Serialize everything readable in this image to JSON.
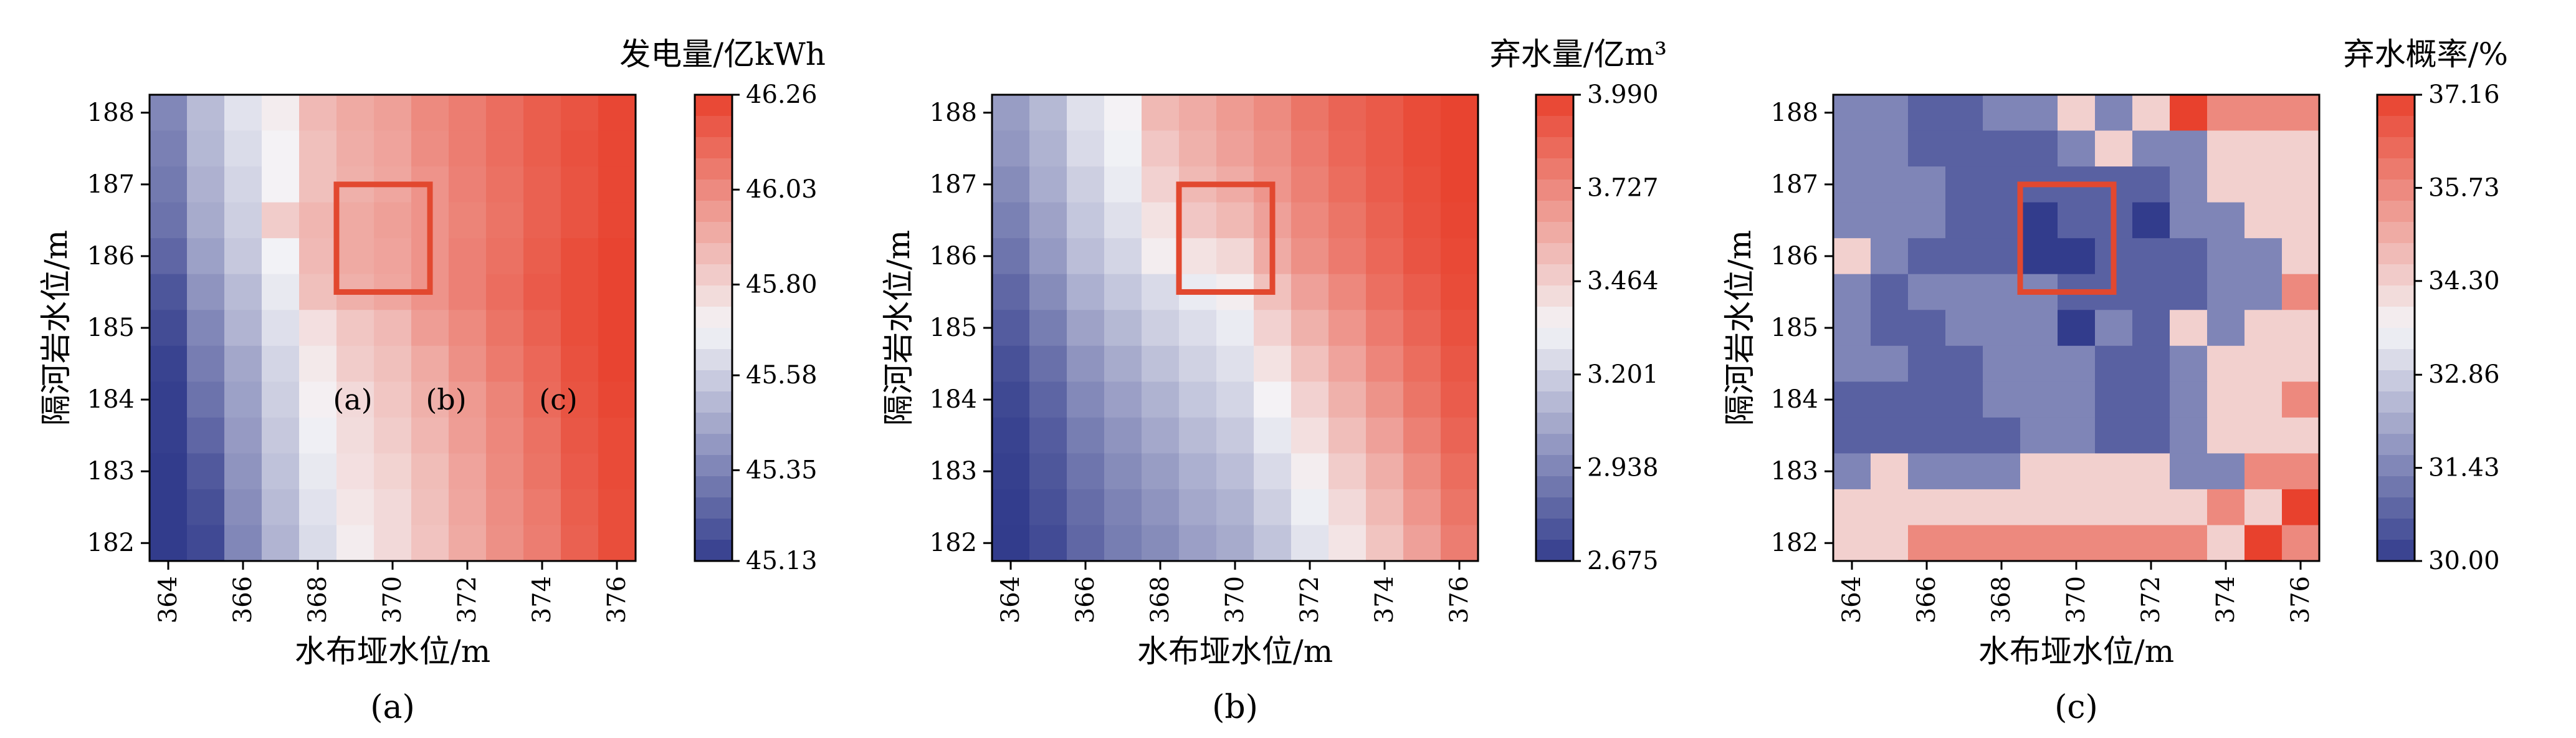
{
  "panels": [
    {
      "caption": "(a)",
      "colorbar_title": "发电量/亿kWh",
      "colorbar_ticks": [
        "46.26",
        "46.03",
        "45.80",
        "45.58",
        "45.35",
        "45.13"
      ],
      "vmin": 45.13,
      "vmax": 46.26
    },
    {
      "caption": "(b)",
      "colorbar_title": "弃水量/亿m³",
      "colorbar_ticks": [
        "3.990",
        "3.727",
        "3.464",
        "3.201",
        "2.938",
        "2.675"
      ],
      "vmin": 2.675,
      "vmax": 3.99
    },
    {
      "caption": "(c)",
      "colorbar_title": "弃水概率/%",
      "colorbar_ticks": [
        "37.16",
        "35.73",
        "34.30",
        "32.86",
        "31.43",
        "30.00"
      ],
      "vmin": 30.0,
      "vmax": 37.16
    }
  ],
  "annotations": [
    "(a)",
    "(b)",
    "(c)"
  ],
  "axes": {
    "xlabel": "水布垭水位/m",
    "ylabel": "隔河岩水位/m",
    "x_ticks": [
      "364",
      "366",
      "368",
      "370",
      "372",
      "374",
      "376"
    ],
    "y_ticks": [
      "188",
      "187",
      "186",
      "185",
      "184",
      "183",
      "182"
    ]
  },
  "colors": {
    "low": "#323c8c",
    "mid": "#f4f4f7",
    "high": "#e8412d",
    "highlight": "#e2482f"
  },
  "chart_data": [
    {
      "type": "heatmap",
      "title": "发电量/亿kWh",
      "xlabel": "水布垭水位/m",
      "ylabel": "隔河岩水位/m",
      "x": [
        364,
        365,
        366,
        367,
        368,
        369,
        370,
        371,
        372,
        373,
        374,
        375,
        376
      ],
      "y": [
        188,
        187.5,
        187,
        186.5,
        186,
        185.5,
        185,
        184.5,
        184,
        183.5,
        183,
        182.5,
        182
      ],
      "vrange": [
        45.13,
        46.26
      ],
      "highlight_box": {
        "x": [
          368.5,
          371
        ],
        "y": [
          185.5,
          187
        ]
      },
      "values": [
        [
          45.36,
          45.52,
          45.64,
          45.72,
          45.88,
          45.93,
          45.96,
          46.03,
          46.07,
          46.12,
          46.17,
          46.2,
          46.24
        ],
        [
          45.34,
          45.51,
          45.62,
          45.7,
          45.86,
          45.92,
          45.95,
          46.02,
          46.07,
          46.12,
          46.17,
          46.21,
          46.24
        ],
        [
          45.32,
          45.49,
          45.6,
          45.7,
          45.86,
          45.91,
          45.94,
          46.0,
          46.06,
          46.11,
          46.16,
          46.2,
          46.24
        ],
        [
          45.3,
          45.47,
          45.58,
          45.82,
          45.89,
          45.93,
          45.96,
          46.0,
          46.05,
          46.1,
          46.16,
          46.2,
          46.24
        ],
        [
          45.26,
          45.44,
          45.56,
          45.69,
          45.88,
          45.93,
          45.95,
          46.0,
          46.06,
          46.11,
          46.17,
          46.22,
          46.25
        ],
        [
          45.21,
          45.4,
          45.52,
          45.66,
          45.86,
          45.91,
          45.94,
          46.0,
          46.06,
          46.12,
          46.18,
          46.22,
          46.25
        ],
        [
          45.18,
          45.36,
          45.5,
          45.63,
          45.76,
          45.84,
          45.88,
          45.97,
          46.03,
          46.1,
          46.16,
          46.22,
          46.25
        ],
        [
          45.15,
          45.33,
          45.46,
          45.6,
          45.73,
          45.82,
          45.86,
          45.93,
          46.01,
          46.08,
          46.14,
          46.21,
          46.25
        ],
        [
          45.14,
          45.3,
          45.44,
          45.58,
          45.71,
          45.78,
          45.84,
          45.91,
          45.98,
          46.05,
          46.13,
          46.2,
          46.24
        ],
        [
          45.14,
          45.26,
          45.42,
          45.56,
          45.68,
          45.77,
          45.82,
          45.89,
          45.97,
          46.04,
          46.11,
          46.19,
          46.23
        ],
        [
          45.13,
          45.22,
          45.4,
          45.54,
          45.66,
          45.76,
          45.8,
          45.87,
          45.95,
          46.03,
          46.1,
          46.18,
          46.23
        ],
        [
          45.13,
          45.19,
          45.38,
          45.52,
          45.64,
          45.74,
          45.78,
          45.86,
          45.94,
          46.02,
          46.08,
          46.17,
          46.22
        ],
        [
          45.13,
          45.17,
          45.36,
          45.5,
          45.62,
          45.72,
          45.78,
          45.85,
          45.93,
          46.01,
          46.07,
          46.16,
          46.22
        ]
      ]
    },
    {
      "type": "heatmap",
      "title": "弃水量/亿m³",
      "xlabel": "水布垭水位/m",
      "ylabel": "隔河岩水位/m",
      "x": [
        364,
        365,
        366,
        367,
        368,
        369,
        370,
        371,
        372,
        373,
        374,
        375,
        376
      ],
      "y": [
        188,
        187.5,
        187,
        186.5,
        186,
        185.5,
        185,
        184.5,
        184,
        183.5,
        183,
        182.5,
        182
      ],
      "vrange": [
        2.675,
        3.99
      ],
      "highlight_box": {
        "x": [
          368.5,
          371
        ],
        "y": [
          185.5,
          187
        ]
      },
      "values": [
        [
          3.02,
          3.12,
          3.26,
          3.34,
          3.55,
          3.6,
          3.66,
          3.72,
          3.8,
          3.86,
          3.9,
          3.95,
          3.98
        ],
        [
          3.0,
          3.1,
          3.24,
          3.32,
          3.5,
          3.58,
          3.64,
          3.7,
          3.78,
          3.85,
          3.9,
          3.95,
          3.98
        ],
        [
          2.96,
          3.08,
          3.2,
          3.3,
          3.46,
          3.55,
          3.6,
          3.68,
          3.76,
          3.83,
          3.89,
          3.94,
          3.98
        ],
        [
          2.92,
          3.04,
          3.17,
          3.26,
          3.4,
          3.5,
          3.55,
          3.64,
          3.73,
          3.8,
          3.87,
          3.93,
          3.97
        ],
        [
          2.88,
          3.01,
          3.14,
          3.22,
          3.36,
          3.4,
          3.44,
          3.6,
          3.7,
          3.78,
          3.85,
          3.92,
          3.96
        ],
        [
          2.83,
          2.96,
          3.09,
          3.17,
          3.24,
          3.3,
          3.36,
          3.52,
          3.64,
          3.73,
          3.82,
          3.89,
          3.95
        ],
        [
          2.79,
          2.91,
          3.04,
          3.12,
          3.2,
          3.25,
          3.3,
          3.46,
          3.58,
          3.68,
          3.78,
          3.86,
          3.93
        ],
        [
          2.75,
          2.86,
          2.99,
          3.07,
          3.15,
          3.21,
          3.26,
          3.4,
          3.52,
          3.63,
          3.74,
          3.83,
          3.91
        ],
        [
          2.72,
          2.82,
          2.95,
          3.03,
          3.1,
          3.17,
          3.22,
          3.34,
          3.46,
          3.58,
          3.69,
          3.8,
          3.89
        ],
        [
          2.7,
          2.79,
          2.91,
          2.99,
          3.06,
          3.13,
          3.18,
          3.29,
          3.41,
          3.53,
          3.64,
          3.76,
          3.86
        ],
        [
          2.69,
          2.77,
          2.88,
          2.96,
          3.02,
          3.09,
          3.14,
          3.24,
          3.36,
          3.48,
          3.59,
          3.72,
          3.83
        ],
        [
          2.68,
          2.75,
          2.85,
          2.93,
          2.99,
          3.06,
          3.1,
          3.2,
          3.31,
          3.43,
          3.55,
          3.68,
          3.8
        ],
        [
          2.675,
          2.73,
          2.83,
          2.91,
          2.96,
          3.03,
          3.07,
          3.16,
          3.27,
          3.39,
          3.51,
          3.64,
          3.77
        ]
      ]
    },
    {
      "type": "heatmap",
      "title": "弃水概率/%",
      "xlabel": "水布垭水位/m",
      "ylabel": "隔河岩水位/m",
      "x": [
        364,
        365,
        366,
        367,
        368,
        369,
        370,
        371,
        372,
        373,
        374,
        375,
        376
      ],
      "y": [
        188,
        187.5,
        187,
        186.5,
        186,
        185.5,
        185,
        184.5,
        184,
        183.5,
        183,
        182.5,
        182
      ],
      "vrange": [
        30.0,
        37.16
      ],
      "highlight_box": {
        "x": [
          368.5,
          371
        ],
        "y": [
          185.5,
          187
        ]
      },
      "values": [
        [
          31.43,
          31.43,
          30.72,
          30.72,
          31.43,
          31.43,
          34.3,
          31.43,
          34.3,
          37.16,
          35.73,
          35.73,
          35.73
        ],
        [
          31.43,
          31.43,
          30.72,
          30.72,
          30.72,
          30.72,
          31.43,
          34.3,
          31.43,
          31.43,
          34.3,
          34.3,
          34.3
        ],
        [
          31.43,
          31.43,
          31.43,
          30.72,
          30.72,
          30.72,
          30.72,
          30.72,
          30.72,
          31.43,
          34.3,
          34.3,
          34.3
        ],
        [
          31.43,
          31.43,
          31.43,
          30.72,
          30.72,
          30.0,
          30.72,
          30.72,
          30.0,
          31.43,
          31.43,
          34.3,
          34.3
        ],
        [
          34.3,
          31.43,
          30.72,
          30.72,
          30.72,
          30.0,
          30.0,
          30.72,
          30.72,
          30.72,
          31.43,
          31.43,
          34.3
        ],
        [
          31.43,
          30.72,
          31.43,
          31.43,
          31.43,
          31.43,
          30.72,
          30.72,
          30.72,
          30.72,
          31.43,
          31.43,
          35.73
        ],
        [
          31.43,
          30.72,
          30.72,
          31.43,
          31.43,
          31.43,
          30.0,
          31.43,
          30.72,
          34.3,
          31.43,
          34.3,
          34.3
        ],
        [
          31.43,
          31.43,
          30.72,
          30.72,
          31.43,
          31.43,
          31.43,
          30.72,
          30.72,
          31.43,
          34.3,
          34.3,
          34.3
        ],
        [
          30.72,
          30.72,
          30.72,
          30.72,
          31.43,
          31.43,
          31.43,
          30.72,
          30.72,
          31.43,
          34.3,
          34.3,
          35.73
        ],
        [
          30.72,
          30.72,
          30.72,
          30.72,
          30.72,
          31.43,
          31.43,
          30.72,
          30.72,
          31.43,
          34.3,
          34.3,
          34.3
        ],
        [
          31.43,
          34.3,
          31.43,
          31.43,
          31.43,
          34.3,
          34.3,
          34.3,
          34.3,
          31.43,
          31.43,
          35.73,
          35.73
        ],
        [
          34.3,
          34.3,
          34.3,
          34.3,
          34.3,
          34.3,
          34.3,
          34.3,
          34.3,
          34.3,
          35.73,
          34.3,
          37.16
        ],
        [
          34.3,
          34.3,
          35.73,
          35.73,
          35.73,
          35.73,
          35.73,
          35.73,
          35.73,
          35.73,
          34.3,
          37.16,
          35.73
        ]
      ]
    }
  ]
}
